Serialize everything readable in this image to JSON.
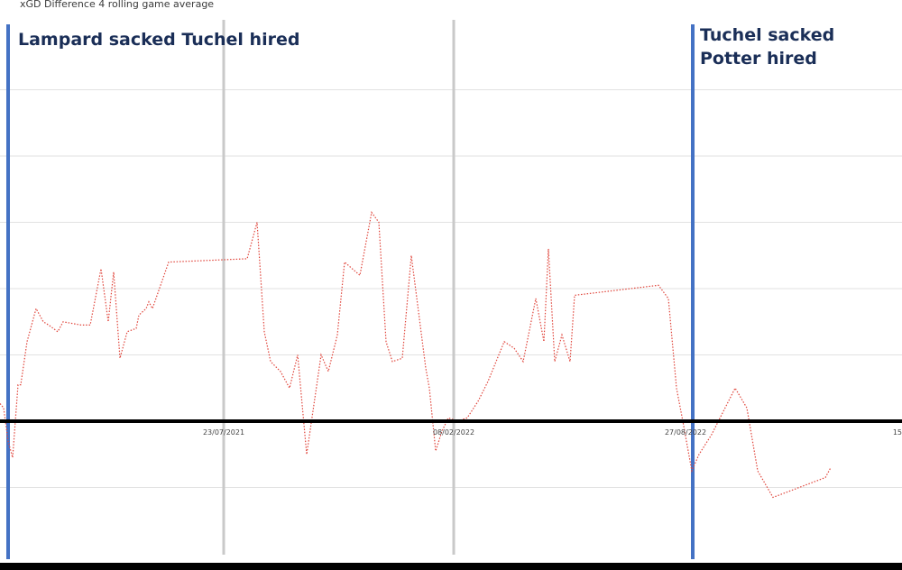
{
  "chart_data": {
    "type": "line",
    "title": "xGD Difference 4 rolling game average",
    "line_color": "#e0443a",
    "line_style": "dotted",
    "x_tick_labels": [
      "23/07/2021",
      "08/02/2022",
      "27/08/2022",
      "15"
    ],
    "zero_line_color": "#000000",
    "gridlines": true,
    "vertical_markers": [
      {
        "label": "Lampard sacked Tuchel hired",
        "color": "#4472c4"
      },
      {
        "label": "Tuchel sacked Potter hired",
        "color": "#4472c4"
      }
    ],
    "x": [
      -2,
      4,
      9,
      14,
      20,
      23,
      30,
      40,
      48,
      54,
      64,
      70,
      90,
      100,
      112,
      120,
      126,
      133,
      141,
      151,
      154,
      162,
      165,
      169,
      187,
      274,
      285,
      293,
      300,
      311,
      321,
      330,
      340,
      356,
      364,
      374,
      382,
      399,
      412,
      420,
      428,
      435,
      446,
      456,
      472,
      476,
      483,
      490,
      497,
      507,
      518,
      530,
      541,
      559,
      570,
      580,
      594,
      603,
      608,
      615,
      623,
      632,
      637,
      730,
      741,
      750,
      757,
      767,
      775,
      789,
      815,
      828,
      840,
      857,
      915,
      921
    ],
    "y": [
      0.3,
      0.2,
      -0.3,
      -0.55,
      0.55,
      0.55,
      1.2,
      1.7,
      1.5,
      1.45,
      1.35,
      1.5,
      1.45,
      1.45,
      2.3,
      1.5,
      2.25,
      0.95,
      1.35,
      1.4,
      1.6,
      1.7,
      1.8,
      1.7,
      2.4,
      2.45,
      3.0,
      1.35,
      0.9,
      0.75,
      0.5,
      1.0,
      -0.5,
      1.0,
      0.75,
      1.3,
      2.4,
      2.2,
      3.15,
      3.0,
      1.2,
      0.9,
      0.95,
      2.5,
      0.8,
      0.5,
      -0.45,
      -0.15,
      0.05,
      0.0,
      0.05,
      0.3,
      0.6,
      1.2,
      1.1,
      0.9,
      1.85,
      1.2,
      2.6,
      0.9,
      1.3,
      0.9,
      1.9,
      2.05,
      1.85,
      0.5,
      0.0,
      -0.75,
      -0.5,
      -0.2,
      0.5,
      0.2,
      -0.75,
      -1.15,
      -0.85,
      -0.7
    ]
  }
}
